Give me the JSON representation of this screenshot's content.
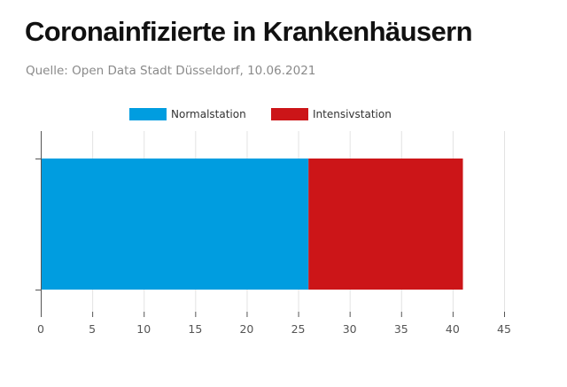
{
  "header": {
    "title": "Coronainfizierte in Krankenhäusern",
    "source": "Quelle: Open Data Stadt Düsseldorf, 10.06.2021"
  },
  "colors": {
    "normal": "#009de0",
    "intensiv": "#cc1518",
    "grid": "#e3e3e3",
    "axis": "#555555"
  },
  "chart_data": {
    "type": "bar",
    "orientation": "horizontal",
    "stacked": true,
    "categories": [
      ""
    ],
    "series": [
      {
        "name": "Normalstation",
        "values": [
          26
        ],
        "color": "#009de0"
      },
      {
        "name": "Intensivstation",
        "values": [
          15
        ],
        "color": "#cc1518"
      }
    ],
    "xlim": [
      0,
      45
    ],
    "xticks": [
      0,
      5,
      10,
      15,
      20,
      25,
      30,
      35,
      40,
      45
    ],
    "grid": true,
    "legend": "top-center"
  }
}
